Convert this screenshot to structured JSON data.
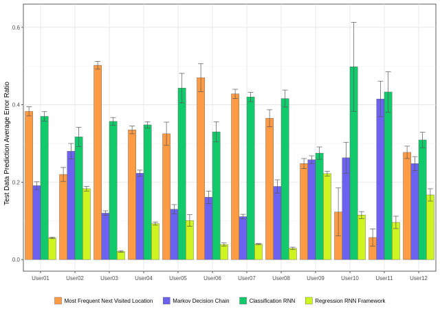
{
  "chart_data": {
    "type": "bar",
    "title": "",
    "xlabel": "",
    "ylabel": "Test Data Prediction Average Error Ratio",
    "ylim": [
      -0.03,
      0.66
    ],
    "yticks": [
      0.0,
      0.2,
      0.4,
      0.6
    ],
    "ytick_labels": [
      "0.0",
      "0.2",
      "0.4",
      "0.6"
    ],
    "grid": true,
    "legend_position": "bottom",
    "categories": [
      "User01",
      "User02",
      "User03",
      "User04",
      "User05",
      "User06",
      "User07",
      "User08",
      "User09",
      "User10",
      "User11",
      "User12"
    ],
    "series": [
      {
        "name": "Most Frequent Next Visited Location",
        "color": "#FF9B45",
        "values": [
          0.383,
          0.22,
          0.502,
          0.335,
          0.325,
          0.47,
          0.428,
          0.365,
          0.248,
          0.123,
          0.057,
          0.277
        ],
        "errors": [
          0.012,
          0.018,
          0.01,
          0.01,
          0.03,
          0.036,
          0.012,
          0.022,
          0.013,
          0.062,
          0.022,
          0.016
        ]
      },
      {
        "name": "Markov Decision Chain",
        "color": "#6B63F0",
        "values": [
          0.191,
          0.28,
          0.12,
          0.223,
          0.13,
          0.161,
          0.111,
          0.189,
          0.258,
          0.263,
          0.415,
          0.248
        ],
        "errors": [
          0.01,
          0.02,
          0.006,
          0.008,
          0.012,
          0.016,
          0.006,
          0.017,
          0.01,
          0.04,
          0.046,
          0.018
        ]
      },
      {
        "name": "Classification RNN",
        "color": "#12C96B",
        "values": [
          0.37,
          0.317,
          0.357,
          0.348,
          0.443,
          0.33,
          0.42,
          0.416,
          0.275,
          0.498,
          0.433,
          0.309
        ],
        "errors": [
          0.012,
          0.025,
          0.01,
          0.008,
          0.038,
          0.026,
          0.012,
          0.022,
          0.016,
          0.115,
          0.052,
          0.02
        ]
      },
      {
        "name": "Regression RNN Framework",
        "color": "#CFF520",
        "values": [
          0.056,
          0.183,
          0.021,
          0.093,
          0.101,
          0.039,
          0.04,
          0.029,
          0.222,
          0.115,
          0.096,
          0.167
        ],
        "errors": [
          0.002,
          0.006,
          0.002,
          0.004,
          0.015,
          0.004,
          0.002,
          0.003,
          0.006,
          0.009,
          0.016,
          0.016
        ]
      }
    ]
  }
}
